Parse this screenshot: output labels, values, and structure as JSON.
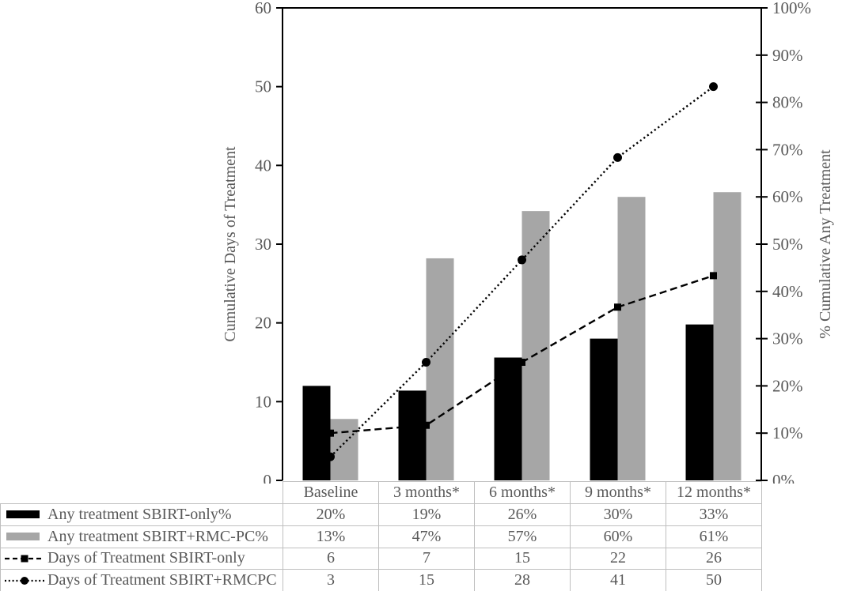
{
  "figure": {
    "background": "#ffffff",
    "text_color": "#595959",
    "axis_line_color": "#000000",
    "table_border_color": "#bfbfbf"
  },
  "chart_data": {
    "type": "combo-bar-line",
    "title": "",
    "categories": [
      "Baseline",
      "3 months*",
      "6 months*",
      "9 months*",
      "12 months*"
    ],
    "left_axis": {
      "label": "Cumulative Days of Treatment",
      "min": 0,
      "max": 60,
      "tick_step": 10,
      "tick_labels": [
        "0",
        "10",
        "20",
        "30",
        "40",
        "50",
        "60"
      ]
    },
    "right_axis": {
      "label": "% Cumulative Any Treatment",
      "min": 0,
      "max": 100,
      "tick_step": 10,
      "tick_labels": [
        "0%",
        "10%",
        "20%",
        "30%",
        "40%",
        "50%",
        "60%",
        "70%",
        "80%",
        "90%",
        "100%"
      ]
    },
    "grid": false,
    "legend_position": "rows of data table, bottom-left",
    "series": [
      {
        "name": "Any treatment SBIRT-only%",
        "type": "bar",
        "axis": "right",
        "color": "#000000",
        "values": [
          20,
          19,
          26,
          30,
          33
        ],
        "table_labels": [
          "20%",
          "19%",
          "26%",
          "30%",
          "33%"
        ]
      },
      {
        "name": "Any treatment SBIRT+RMC-PC%",
        "type": "bar",
        "axis": "right",
        "color": "#a6a6a6",
        "values": [
          13,
          47,
          57,
          60,
          61
        ],
        "table_labels": [
          "13%",
          "47%",
          "57%",
          "60%",
          "61%"
        ]
      },
      {
        "name": "Days of Treatment SBIRT-only",
        "type": "line",
        "axis": "left",
        "line_style": "dashed",
        "marker": "square",
        "color": "#000000",
        "values": [
          6,
          7,
          15,
          22,
          26
        ],
        "table_labels": [
          "6",
          "7",
          "15",
          "22",
          "26"
        ]
      },
      {
        "name": "Days of Treatment SBIRT+RMCPC",
        "type": "line",
        "axis": "left",
        "line_style": "dotted",
        "marker": "circle",
        "color": "#000000",
        "values": [
          3,
          15,
          28,
          41,
          50
        ],
        "table_labels": [
          "3",
          "15",
          "28",
          "41",
          "50"
        ]
      }
    ]
  }
}
